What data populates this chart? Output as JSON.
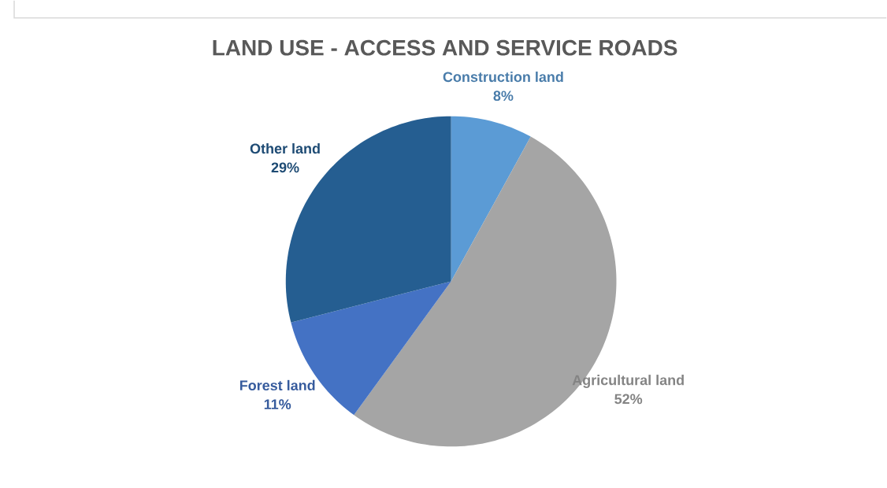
{
  "chart_data": {
    "type": "pie",
    "title": "LAND USE - ACCESS AND SERVICE ROADS",
    "categories": [
      "Construction land",
      "Agricultural land",
      "Forest land",
      "Other land"
    ],
    "values": [
      8,
      52,
      11,
      29
    ],
    "value_labels": [
      "8%",
      "52%",
      "11%",
      "29%"
    ],
    "colors": [
      "#5b9bd5",
      "#a5a5a5",
      "#4472c4",
      "#255e91"
    ],
    "legend": false
  }
}
